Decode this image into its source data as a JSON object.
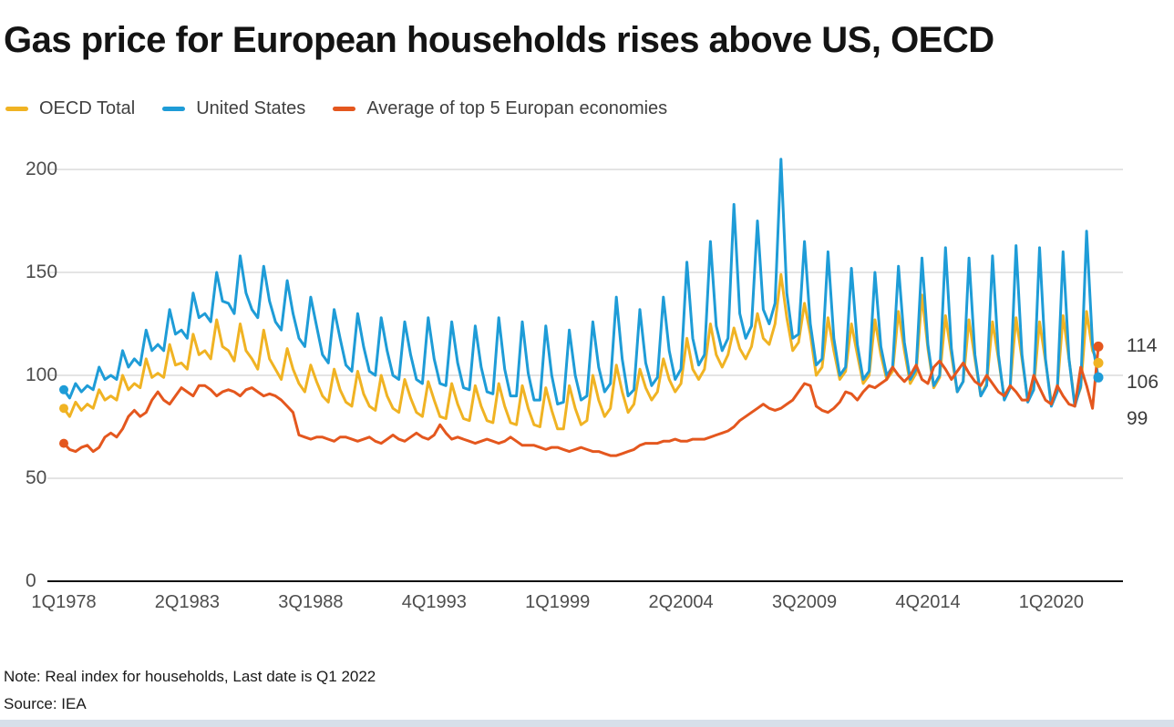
{
  "title": "Gas price for European households rises above US, OECD",
  "legend": [
    {
      "label": "OECD Total",
      "color": "#F0B323"
    },
    {
      "label": "United States",
      "color": "#1E9CD7"
    },
    {
      "label": "Average of top 5 Europan economies",
      "color": "#E4571E"
    }
  ],
  "note": "Note: Real index for households, Last date is Q1 2022",
  "source": "Source: IEA",
  "chart_data": {
    "type": "line",
    "title": "Gas price for European households rises above US, OECD",
    "x_frequency": "quarterly",
    "x_start": "1Q1978",
    "x_end": "1Q2022",
    "x_tick_labels": [
      "1Q1978",
      "2Q1983",
      "3Q1988",
      "4Q1993",
      "1Q1999",
      "2Q2004",
      "3Q2009",
      "4Q2014",
      "1Q2020"
    ],
    "x_tick_quarters": [
      0,
      21,
      42,
      63,
      84,
      105,
      126,
      147,
      168
    ],
    "y_ticks": [
      0,
      50,
      100,
      150,
      200
    ],
    "ylim": [
      0,
      210
    ],
    "grid": "horizontal",
    "legend_position": "top",
    "series": [
      {
        "name": "OECD Total",
        "color": "#F0B323",
        "end_label": "106",
        "values": [
          84,
          80,
          87,
          83,
          86,
          84,
          93,
          88,
          90,
          88,
          100,
          93,
          96,
          94,
          108,
          99,
          101,
          99,
          115,
          105,
          106,
          103,
          120,
          110,
          112,
          108,
          127,
          114,
          112,
          107,
          125,
          112,
          108,
          103,
          122,
          108,
          103,
          98,
          113,
          103,
          96,
          92,
          105,
          97,
          90,
          87,
          103,
          93,
          87,
          85,
          102,
          91,
          85,
          83,
          100,
          90,
          84,
          82,
          98,
          89,
          82,
          80,
          97,
          88,
          80,
          79,
          96,
          86,
          79,
          78,
          95,
          85,
          78,
          77,
          96,
          85,
          77,
          76,
          95,
          84,
          76,
          75,
          94,
          83,
          74,
          74,
          95,
          84,
          76,
          78,
          100,
          88,
          80,
          84,
          105,
          92,
          82,
          86,
          103,
          94,
          88,
          92,
          108,
          98,
          92,
          96,
          118,
          103,
          98,
          103,
          125,
          110,
          104,
          110,
          123,
          113,
          108,
          114,
          130,
          118,
          115,
          125,
          149,
          128,
          112,
          116,
          135,
          120,
          100,
          104,
          128,
          112,
          98,
          102,
          125,
          110,
          96,
          100,
          127,
          110,
          98,
          102,
          131,
          112,
          96,
          101,
          139,
          113,
          94,
          99,
          129,
          110,
          92,
          97,
          127,
          108,
          90,
          96,
          126,
          108,
          89,
          95,
          128,
          108,
          88,
          94,
          126,
          107,
          87,
          93,
          129,
          108,
          86,
          94,
          131,
          112,
          106
        ]
      },
      {
        "name": "United States",
        "color": "#1E9CD7",
        "end_label": "99",
        "values": [
          93,
          89,
          96,
          92,
          95,
          93,
          104,
          98,
          100,
          98,
          112,
          104,
          108,
          105,
          122,
          112,
          115,
          112,
          132,
          120,
          122,
          118,
          140,
          128,
          130,
          126,
          150,
          136,
          135,
          130,
          158,
          140,
          132,
          128,
          153,
          136,
          126,
          122,
          146,
          130,
          118,
          114,
          138,
          124,
          110,
          106,
          132,
          118,
          105,
          102,
          130,
          114,
          102,
          100,
          128,
          112,
          100,
          98,
          126,
          110,
          98,
          96,
          128,
          108,
          96,
          95,
          126,
          106,
          94,
          93,
          124,
          104,
          92,
          91,
          128,
          103,
          90,
          90,
          126,
          101,
          88,
          88,
          124,
          100,
          86,
          87,
          122,
          100,
          88,
          90,
          126,
          104,
          92,
          96,
          138,
          108,
          90,
          93,
          132,
          106,
          95,
          99,
          138,
          112,
          98,
          103,
          155,
          118,
          105,
          110,
          165,
          124,
          112,
          118,
          183,
          130,
          118,
          124,
          175,
          132,
          125,
          135,
          205,
          140,
          118,
          120,
          165,
          125,
          105,
          108,
          160,
          118,
          100,
          104,
          152,
          115,
          98,
          102,
          150,
          114,
          100,
          104,
          153,
          116,
          98,
          103,
          157,
          115,
          95,
          100,
          162,
          113,
          92,
          97,
          157,
          110,
          90,
          95,
          158,
          110,
          88,
          94,
          163,
          110,
          87,
          93,
          162,
          108,
          85,
          92,
          160,
          108,
          85,
          95,
          170,
          115,
          99
        ]
      },
      {
        "name": "Average of top 5 Europan economies",
        "color": "#E4571E",
        "end_label": "114",
        "values": [
          67,
          64,
          63,
          65,
          66,
          63,
          65,
          70,
          72,
          70,
          74,
          80,
          83,
          80,
          82,
          88,
          92,
          88,
          86,
          90,
          94,
          92,
          90,
          95,
          95,
          93,
          90,
          92,
          93,
          92,
          90,
          93,
          94,
          92,
          90,
          91,
          90,
          88,
          85,
          82,
          71,
          70,
          69,
          70,
          70,
          69,
          68,
          70,
          70,
          69,
          68,
          69,
          70,
          68,
          67,
          69,
          71,
          69,
          68,
          70,
          72,
          70,
          69,
          71,
          76,
          72,
          69,
          70,
          69,
          68,
          67,
          68,
          69,
          68,
          67,
          68,
          70,
          68,
          66,
          66,
          66,
          65,
          64,
          65,
          65,
          64,
          63,
          64,
          65,
          64,
          63,
          63,
          62,
          61,
          61,
          62,
          63,
          64,
          66,
          67,
          67,
          67,
          68,
          68,
          69,
          68,
          68,
          69,
          69,
          69,
          70,
          71,
          72,
          73,
          75,
          78,
          80,
          82,
          84,
          86,
          84,
          83,
          84,
          86,
          88,
          92,
          96,
          95,
          85,
          83,
          82,
          84,
          87,
          92,
          91,
          88,
          92,
          95,
          94,
          96,
          98,
          104,
          100,
          97,
          100,
          105,
          98,
          96,
          104,
          107,
          103,
          98,
          102,
          106,
          101,
          97,
          95,
          100,
          96,
          92,
          90,
          95,
          92,
          88,
          88,
          100,
          94,
          88,
          86,
          95,
          90,
          86,
          85,
          104,
          95,
          84,
          114
        ]
      }
    ]
  }
}
